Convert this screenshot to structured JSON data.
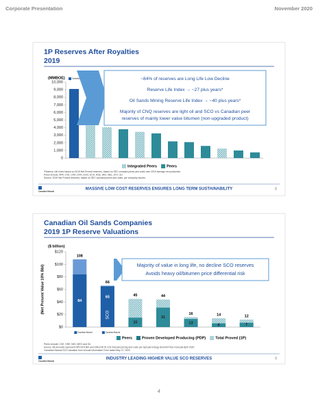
{
  "header": {
    "left": "Corporate Presentation",
    "right": "November 2020"
  },
  "page_number": "4",
  "logo_text": "Canadian Natural",
  "chart_data": [
    {
      "type": "bar",
      "title": "1P Reserves After Royalties",
      "subtitle": "2019",
      "y_label": "(MMBOE)",
      "categories": [
        null,
        null,
        null,
        null,
        null,
        null,
        null,
        null,
        null,
        null,
        null,
        null
      ],
      "values": [
        9100,
        4300,
        4050,
        3800,
        3450,
        3250,
        2200,
        2100,
        1600,
        1250,
        1000,
        750
      ],
      "fills": [
        "#1f5fa8",
        "hatch",
        "hatch",
        "#2e8b99",
        "hatch",
        "#2e8b99",
        "#2e8b99",
        "#2e8b99",
        "#2e8b99",
        "hatch",
        "#2e8b99",
        "#2e8b99"
      ],
      "ylim": [
        0,
        10000
      ],
      "yticks": [
        0,
        {
          "value": 1000,
          "label": "1,000"
        },
        {
          "value": 2000,
          "label": "2,000"
        },
        {
          "value": 3000,
          "label": "3,000"
        },
        {
          "value": 4000,
          "label": "4,000"
        },
        {
          "value": 5000,
          "label": "5,000"
        },
        {
          "value": 6000,
          "label": "6,000"
        },
        {
          "value": 7000,
          "label": "7,000"
        },
        {
          "value": 8000,
          "label": "8,000"
        },
        {
          "value": 9000,
          "label": "9,000"
        },
        {
          "value": 10000,
          "label": "10,000"
        }
      ],
      "legend": [
        {
          "label": "Integrated Peers",
          "fill": "hatch"
        },
        {
          "label": "Peers",
          "fill": "#2e8b99"
        }
      ],
      "callout": [
        "~84% of reserves are Long Life Low Decline",
        "Reserve Life Index → ~27 plus years*",
        "Oil Sands Mining Reserve Life Index → ~40 plus years*",
        "Majority of CNQ reserves are light oil and SCO vs Canadian peer",
        "reserves of mainly lower value bitumen (non-upgraded product)"
      ],
      "footnotes": [
        "*Reserve Life Index based on 2019 Net Proved reserves, based on SEC constant prices and costs over 2019 average net production",
        "Peers include: APA, CVE, CNX, DVN, EOG, ECA, HSE, IMO, NBL, OXY, SU",
        "Source: 2019 Net Proved reserves, based on SEC constant prices and costs, per company reports"
      ],
      "banner": "MASSIVE LOW COST RESERVES ENSURES LONG TERM SUSTAINABILITY",
      "slide_number": "8"
    },
    {
      "type": "overlay-bar",
      "title": "Canadian Oil Sands Companies",
      "subtitle": "2019 1P Reserve Valuations",
      "y_unit": "($ billion)",
      "y_label": "(Net Present Value 10% Bbl)",
      "categories": [
        null,
        null,
        null,
        null,
        null,
        null,
        null
      ],
      "series": [
        {
          "values": [
            108,
            66,
            45,
            44,
            16,
            14,
            12
          ],
          "fills": [
            "#6b9bd6",
            "#6b9bd6",
            "hatch",
            "hatch",
            "hatch",
            "hatch",
            "hatch"
          ],
          "label_position": "top"
        },
        {
          "values": [
            84,
            65,
            15,
            31,
            13,
            6,
            7
          ],
          "fills": [
            "#1f5fa8",
            "#1f5fa8",
            "#2e8b99",
            "#2e8b99",
            "#2e8b99",
            "#2e8b99",
            "#2e8b99"
          ],
          "label_position": "inside"
        }
      ],
      "annotation": "SCO",
      "ylim": [
        0,
        120
      ],
      "yticks": [
        {
          "value": 0,
          "label": "$0"
        },
        {
          "value": 20,
          "label": "$20"
        },
        {
          "value": 40,
          "label": "$40"
        },
        {
          "value": 60,
          "label": "$60"
        },
        {
          "value": 80,
          "label": "$80"
        },
        {
          "value": 100,
          "label": "$100"
        },
        {
          "value": 120,
          "label": "$120"
        }
      ],
      "legend": [
        {
          "label": "Peers",
          "fill": "#2e8b99"
        },
        {
          "label": "Proven Developed Producing (PDP)",
          "fill": "#1f7a86"
        },
        {
          "label": "Total Proved (1P)",
          "fill": "hatch"
        }
      ],
      "callout": [
        "Majority of value in long life, no decline SCO reserves",
        "Avoids heavy oil/bitumen price differential risk"
      ],
      "footnotes": [
        "Peers include: CVE, HSE, IMO, MEG and SU",
        "Source: All amounts represent NPV10% Bbl and reflect NI 51-101 forecast pricing and costs per Sproule Energy Summit Price Forecast April 2020",
        "Canadian Natural SCO valuation from Annual Information Form dated May 27, 2020"
      ],
      "banner": "INDUSTRY LEADING HIGHER VALUE SCO RESERVES",
      "slide_number": "9"
    }
  ]
}
